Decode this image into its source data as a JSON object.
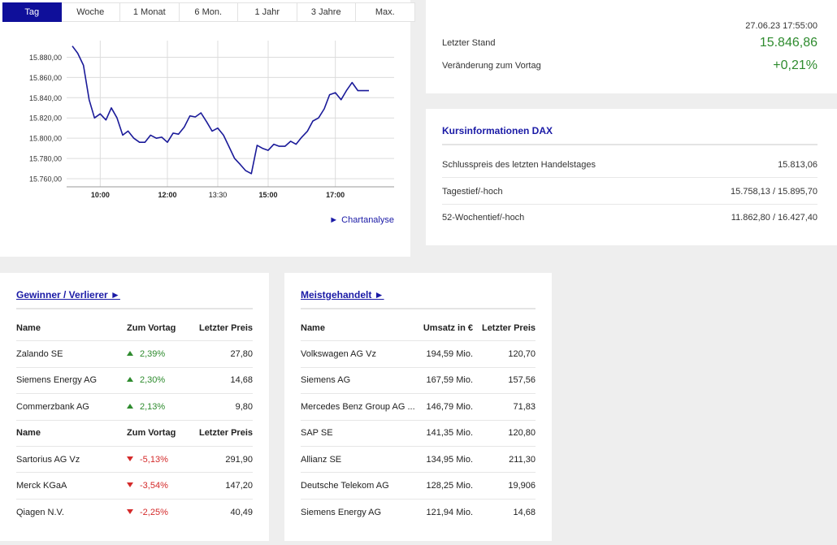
{
  "tabs": [
    {
      "label": "Tag",
      "active": true
    },
    {
      "label": "Woche",
      "active": false
    },
    {
      "label": "1 Monat",
      "active": false
    },
    {
      "label": "6 Mon.",
      "active": false
    },
    {
      "label": "1 Jahr",
      "active": false
    },
    {
      "label": "3 Jahre",
      "active": false
    },
    {
      "label": "Max.",
      "active": false
    }
  ],
  "chart_link": "Chartanalyse",
  "chart_data": {
    "type": "line",
    "x_ticks": [
      {
        "label": "10:00",
        "x": 10.0,
        "bold": true
      },
      {
        "label": "12:00",
        "x": 12.0,
        "bold": true
      },
      {
        "label": "13:30",
        "x": 13.5,
        "bold": false
      },
      {
        "label": "15:00",
        "x": 15.0,
        "bold": true
      },
      {
        "label": "17:00",
        "x": 17.0,
        "bold": true
      }
    ],
    "y_ticks": [
      15760,
      15780,
      15800,
      15820,
      15840,
      15860,
      15880
    ],
    "y_tick_labels": [
      "15.760,00",
      "15.780,00",
      "15.800,00",
      "15.820,00",
      "15.840,00",
      "15.860,00",
      "15.880,00"
    ],
    "xlim": [
      9.0,
      18.75
    ],
    "ylim": [
      15752,
      15898
    ],
    "grid": true,
    "color": "#1a1a99",
    "series": [
      {
        "x": [
          9.17,
          9.33,
          9.5,
          9.67,
          9.83,
          10.0,
          10.17,
          10.33,
          10.5,
          10.67,
          10.83,
          11.0,
          11.17,
          11.33,
          11.5,
          11.67,
          11.83,
          12.0,
          12.17,
          12.33,
          12.5,
          12.67,
          12.83,
          13.0,
          13.17,
          13.33,
          13.5,
          13.67,
          13.83,
          14.0,
          14.17,
          14.33,
          14.5,
          14.67,
          14.83,
          15.0,
          15.17,
          15.33,
          15.5,
          15.67,
          15.83,
          16.0,
          16.17,
          16.33,
          16.5,
          16.67,
          16.83,
          17.0,
          17.17,
          17.33,
          17.5,
          17.67,
          17.83,
          18.0
        ],
        "y": [
          15891,
          15884,
          15872,
          15838,
          15820,
          15824,
          15818,
          15830,
          15820,
          15803,
          15807,
          15800,
          15796,
          15796,
          15803,
          15800,
          15801,
          15796,
          15805,
          15804,
          15811,
          15822,
          15821,
          15825,
          15816,
          15807,
          15810,
          15803,
          15792,
          15780,
          15774,
          15768,
          15765,
          15793,
          15790,
          15788,
          15794,
          15792,
          15792,
          15797,
          15794,
          15801,
          15807,
          15817,
          15820,
          15829,
          15843,
          15845,
          15838,
          15847,
          15855,
          15847,
          15847,
          15847
        ]
      }
    ]
  },
  "quote": {
    "timestamp": "27.06.23 17:55:00",
    "last_label": "Letzter Stand",
    "last_value": "15.846,86",
    "change_label": "Veränderung zum Vortag",
    "change_value": "+0,21%"
  },
  "info": {
    "title": "Kursinformationen DAX",
    "rows": [
      {
        "label": "Schlusspreis des letzten Handelstages",
        "value": "15.813,06"
      },
      {
        "label": "Tagestief/-hoch",
        "value": "15.758,13 / 15.895,70"
      },
      {
        "label": "52-Wochentief/-hoch",
        "value": "11.862,80 / 16.427,40"
      }
    ]
  },
  "gainers_losers": {
    "title": "Gewinner / Verlierer ►",
    "headers": [
      "Name",
      "Zum Vortag",
      "Letzter Preis"
    ],
    "gainers": [
      {
        "name": "Zalando SE",
        "change": "2,39%",
        "price": "27,80"
      },
      {
        "name": "Siemens Energy AG",
        "change": "2,30%",
        "price": "14,68"
      },
      {
        "name": "Commerzbank AG",
        "change": "2,13%",
        "price": "9,80"
      }
    ],
    "losers": [
      {
        "name": "Sartorius AG Vz",
        "change": "-5,13%",
        "price": "291,90"
      },
      {
        "name": "Merck KGaA",
        "change": "-3,54%",
        "price": "147,20"
      },
      {
        "name": "Qiagen N.V.",
        "change": "-2,25%",
        "price": "40,49"
      }
    ],
    "colors": {
      "up": "#2e8b2e",
      "down": "#d42a2a"
    }
  },
  "most_traded": {
    "title": "Meistgehandelt ►",
    "headers": [
      "Name",
      "Umsatz in €",
      "Letzter Preis"
    ],
    "rows": [
      {
        "name": "Volkswagen AG Vz",
        "volume": "194,59 Mio.",
        "price": "120,70"
      },
      {
        "name": "Siemens AG",
        "volume": "167,59 Mio.",
        "price": "157,56"
      },
      {
        "name": "Mercedes Benz Group AG ...",
        "volume": "146,79 Mio.",
        "price": "71,83"
      },
      {
        "name": "SAP SE",
        "volume": "141,35 Mio.",
        "price": "120,80"
      },
      {
        "name": "Allianz SE",
        "volume": "134,95 Mio.",
        "price": "211,30"
      },
      {
        "name": "Deutsche Telekom AG",
        "volume": "128,25 Mio.",
        "price": "19,906"
      },
      {
        "name": "Siemens Energy AG",
        "volume": "121,94 Mio.",
        "price": "14,68"
      }
    ]
  }
}
